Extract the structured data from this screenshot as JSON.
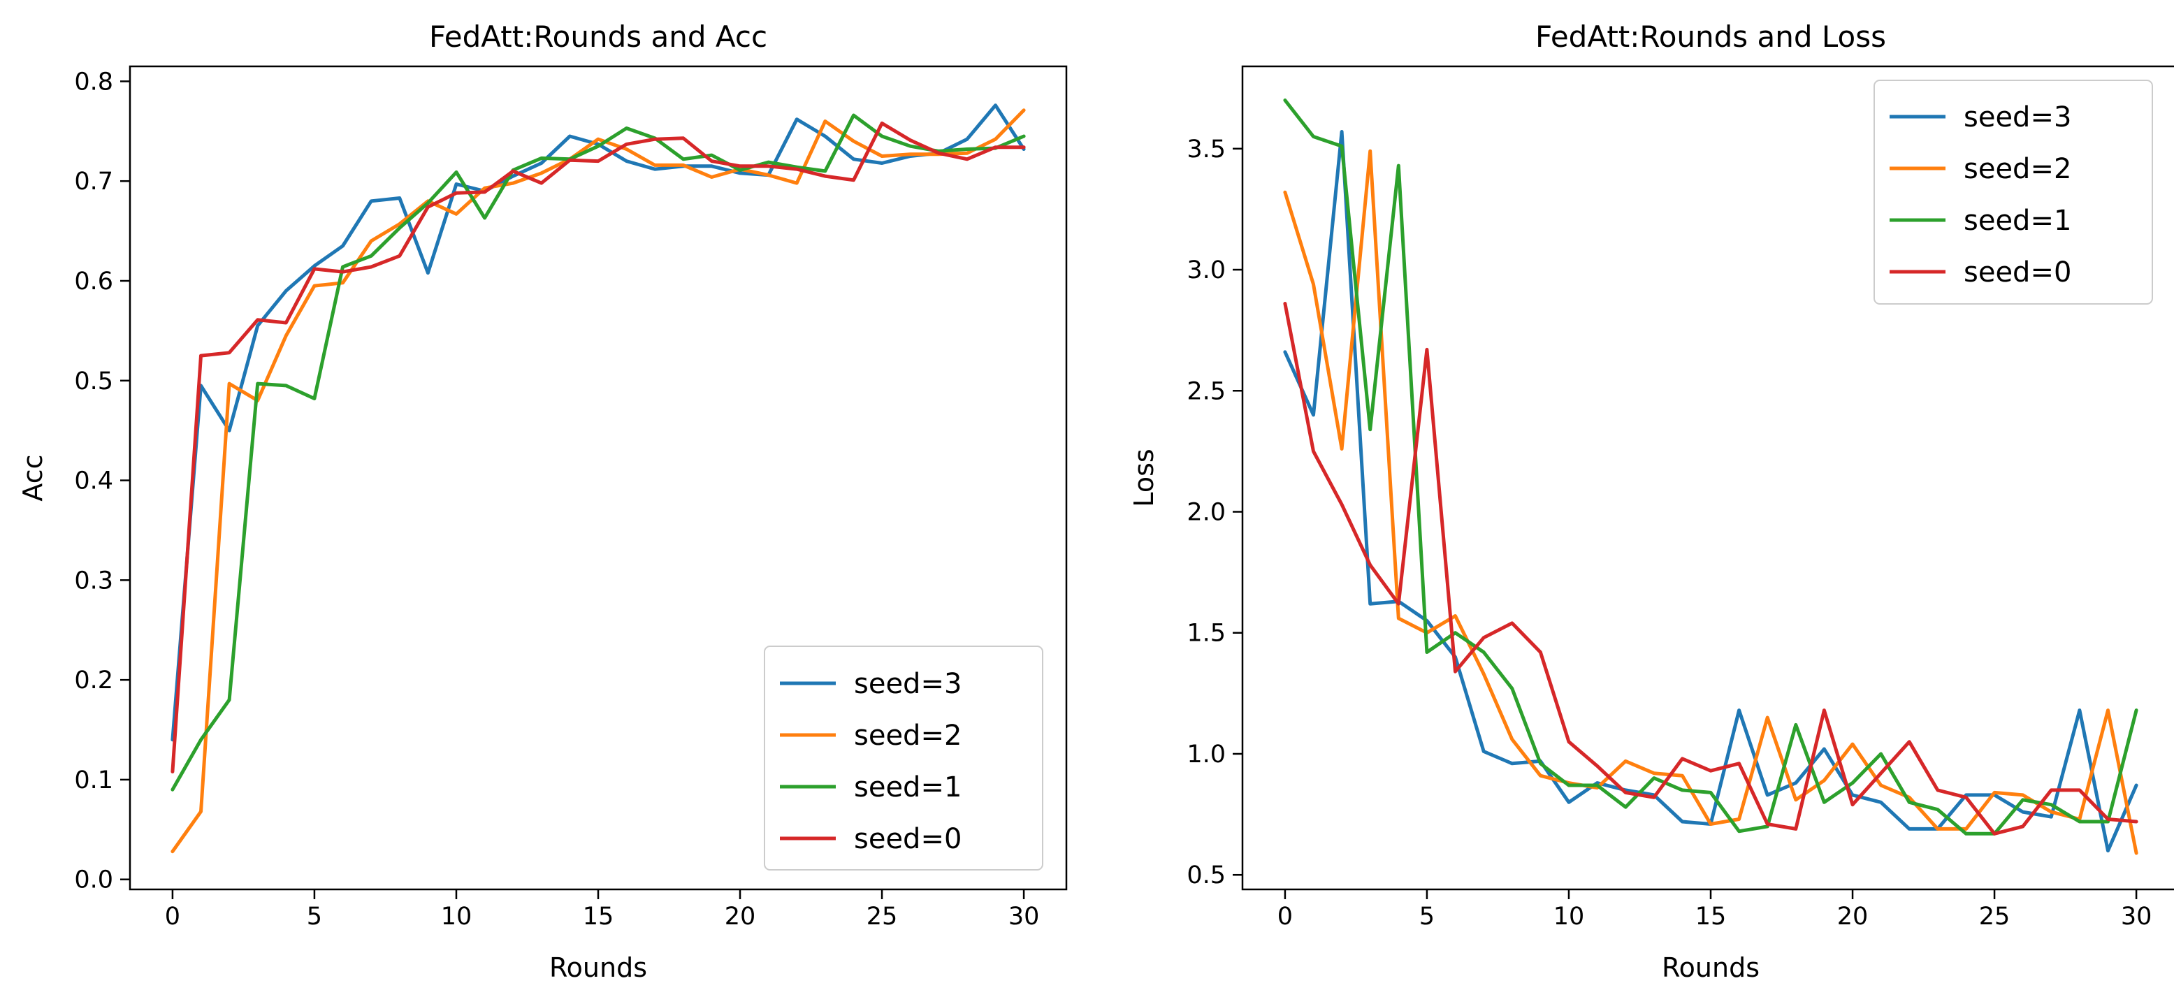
{
  "figure": "FedAtt training curves",
  "chart_data": [
    {
      "type": "line",
      "title": "FedAtt:Rounds and Acc",
      "xlabel": "Rounds",
      "ylabel": "Acc",
      "xlim": [
        -1.5,
        31.5
      ],
      "ylim": [
        -0.01,
        0.815
      ],
      "xticks": [
        0,
        5,
        10,
        15,
        20,
        25,
        30
      ],
      "xtick_labels": [
        "0",
        "5",
        "10",
        "15",
        "20",
        "25",
        "30"
      ],
      "yticks": [
        0.0,
        0.1,
        0.2,
        0.3,
        0.4,
        0.5,
        0.6,
        0.7,
        0.8
      ],
      "ytick_labels": [
        "0.0",
        "0.1",
        "0.2",
        "0.3",
        "0.4",
        "0.5",
        "0.6",
        "0.7",
        "0.8"
      ],
      "legend_position": "lower-right",
      "grid": false,
      "x": [
        0,
        1,
        2,
        3,
        4,
        5,
        6,
        7,
        8,
        9,
        10,
        11,
        12,
        13,
        14,
        15,
        16,
        17,
        18,
        19,
        20,
        21,
        22,
        23,
        24,
        25,
        26,
        27,
        28,
        29,
        30
      ],
      "series": [
        {
          "name": "seed=3",
          "color": "#1f77b4",
          "values": [
            0.14,
            0.495,
            0.45,
            0.555,
            0.59,
            0.615,
            0.635,
            0.68,
            0.683,
            0.608,
            0.697,
            0.69,
            0.705,
            0.718,
            0.745,
            0.737,
            0.72,
            0.712,
            0.715,
            0.715,
            0.708,
            0.706,
            0.762,
            0.745,
            0.722,
            0.718,
            0.725,
            0.728,
            0.742,
            0.776,
            0.732
          ]
        },
        {
          "name": "seed=2",
          "color": "#ff7f0e",
          "values": [
            0.028,
            0.068,
            0.497,
            0.48,
            0.545,
            0.595,
            0.598,
            0.64,
            0.657,
            0.68,
            0.667,
            0.693,
            0.698,
            0.708,
            0.722,
            0.742,
            0.732,
            0.716,
            0.716,
            0.704,
            0.712,
            0.706,
            0.698,
            0.76,
            0.74,
            0.725,
            0.727,
            0.727,
            0.728,
            0.742,
            0.771
          ]
        },
        {
          "name": "seed=1",
          "color": "#2ca02c",
          "values": [
            0.09,
            0.14,
            0.18,
            0.497,
            0.495,
            0.482,
            0.614,
            0.625,
            0.653,
            0.678,
            0.709,
            0.663,
            0.711,
            0.723,
            0.722,
            0.735,
            0.753,
            0.743,
            0.722,
            0.726,
            0.711,
            0.719,
            0.714,
            0.71,
            0.766,
            0.745,
            0.735,
            0.73,
            0.732,
            0.733,
            0.745
          ]
        },
        {
          "name": "seed=0",
          "color": "#d62728",
          "values": [
            0.108,
            0.525,
            0.528,
            0.561,
            0.558,
            0.612,
            0.609,
            0.614,
            0.625,
            0.674,
            0.688,
            0.689,
            0.71,
            0.698,
            0.721,
            0.72,
            0.737,
            0.742,
            0.743,
            0.72,
            0.715,
            0.715,
            0.712,
            0.705,
            0.701,
            0.758,
            0.741,
            0.728,
            0.722,
            0.734,
            0.734
          ]
        }
      ]
    },
    {
      "type": "line",
      "title": "FedAtt:Rounds and Loss",
      "xlabel": "Rounds",
      "ylabel": "Loss",
      "xlim": [
        -1.5,
        31.5
      ],
      "ylim": [
        0.44,
        3.84
      ],
      "xticks": [
        0,
        5,
        10,
        15,
        20,
        25,
        30
      ],
      "xtick_labels": [
        "0",
        "5",
        "10",
        "15",
        "20",
        "25",
        "30"
      ],
      "yticks": [
        0.5,
        1.0,
        1.5,
        2.0,
        2.5,
        3.0,
        3.5
      ],
      "ytick_labels": [
        "0.5",
        "1.0",
        "1.5",
        "2.0",
        "2.5",
        "3.0",
        "3.5"
      ],
      "legend_position": "upper-right",
      "grid": false,
      "x": [
        0,
        1,
        2,
        3,
        4,
        5,
        6,
        7,
        8,
        9,
        10,
        11,
        12,
        13,
        14,
        15,
        16,
        17,
        18,
        19,
        20,
        21,
        22,
        23,
        24,
        25,
        26,
        27,
        28,
        29,
        30
      ],
      "series": [
        {
          "name": "seed=3",
          "color": "#1f77b4",
          "values": [
            2.66,
            2.4,
            3.57,
            1.62,
            1.63,
            1.55,
            1.4,
            1.01,
            0.96,
            0.97,
            0.8,
            0.88,
            0.85,
            0.83,
            0.72,
            0.71,
            1.18,
            0.83,
            0.88,
            1.02,
            0.83,
            0.8,
            0.69,
            0.69,
            0.83,
            0.83,
            0.76,
            0.74,
            1.18,
            0.6,
            0.87
          ]
        },
        {
          "name": "seed=2",
          "color": "#ff7f0e",
          "values": [
            3.32,
            2.94,
            2.26,
            3.49,
            1.56,
            1.5,
            1.57,
            1.33,
            1.06,
            0.91,
            0.88,
            0.86,
            0.97,
            0.92,
            0.91,
            0.71,
            0.73,
            1.15,
            0.81,
            0.89,
            1.04,
            0.87,
            0.82,
            0.69,
            0.69,
            0.84,
            0.83,
            0.76,
            0.73,
            1.18,
            0.59
          ]
        },
        {
          "name": "seed=1",
          "color": "#2ca02c",
          "values": [
            3.7,
            3.55,
            3.51,
            2.34,
            3.43,
            1.42,
            1.5,
            1.42,
            1.27,
            0.96,
            0.87,
            0.87,
            0.78,
            0.9,
            0.85,
            0.84,
            0.68,
            0.7,
            1.12,
            0.8,
            0.88,
            1.0,
            0.8,
            0.77,
            0.67,
            0.67,
            0.81,
            0.79,
            0.72,
            0.72,
            1.18
          ]
        },
        {
          "name": "seed=0",
          "color": "#d62728",
          "values": [
            2.86,
            2.25,
            2.03,
            1.78,
            1.62,
            2.67,
            1.34,
            1.48,
            1.54,
            1.42,
            1.05,
            0.95,
            0.84,
            0.82,
            0.98,
            0.93,
            0.96,
            0.71,
            0.69,
            1.18,
            0.79,
            0.92,
            1.05,
            0.85,
            0.82,
            0.67,
            0.7,
            0.85,
            0.85,
            0.73,
            0.72
          ]
        }
      ]
    }
  ]
}
